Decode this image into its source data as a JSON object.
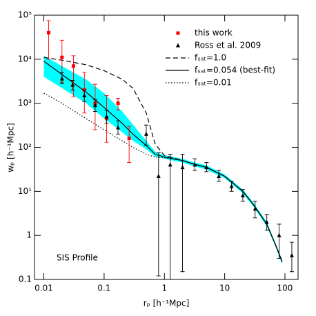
{
  "chart_data": {
    "type": "scatter",
    "xscale": "log",
    "yscale": "log",
    "grid": false,
    "legend": "upper right",
    "xlabel": "rₚ [h⁻¹Mpc]",
    "ylabel": "wₚ [h⁻¹Mpc]",
    "annotation": "SIS Profile",
    "xlim": [
      0.007,
      165
    ],
    "ylim": [
      0.1,
      100000
    ],
    "xticks": [
      0.01,
      0.1,
      1,
      10,
      100
    ],
    "yticks": [
      0.1,
      1,
      {
        "value": 10,
        "label": "10¹"
      },
      {
        "value": 100,
        "label": "10²"
      },
      {
        "value": 1000,
        "label": "10³"
      },
      {
        "value": 10000,
        "label": "10⁴"
      },
      {
        "value": 100000,
        "label": "10⁵"
      }
    ],
    "band": {
      "color": "#00ffff",
      "x": [
        0.01,
        0.02,
        0.05,
        0.1,
        0.2,
        0.3,
        0.5,
        0.7,
        1,
        2,
        3,
        5,
        10,
        20,
        30,
        50,
        70,
        90
      ],
      "lower": [
        4000,
        2200,
        1000,
        450,
        220,
        140,
        90,
        62,
        55,
        45,
        38,
        31,
        20,
        9,
        4.5,
        1.6,
        0.55,
        0.22
      ],
      "upper": [
        12000,
        7000,
        3500,
        1700,
        650,
        330,
        140,
        80,
        66,
        55,
        46,
        39,
        24,
        11,
        5.5,
        2,
        0.66,
        0.28
      ]
    },
    "series": [
      {
        "name": "this work",
        "color": "#ff0000",
        "marker": "square",
        "x": [
          0.012,
          0.02,
          0.031,
          0.047,
          0.071,
          0.11,
          0.17,
          0.26
        ],
        "values": [
          40000,
          11000,
          7000,
          2000,
          1000,
          450,
          1000,
          160
        ],
        "lower": [
          10000,
          3000,
          1400,
          600,
          250,
          130,
          700,
          45
        ],
        "upper": [
          75000,
          27000,
          12000,
          5000,
          2700,
          1500,
          1300,
          300
        ]
      },
      {
        "name": "Ross et al. 2009",
        "color": "#000000",
        "marker": "triangle",
        "x": [
          0.02,
          0.03,
          0.047,
          0.071,
          0.11,
          0.17,
          0.5,
          0.8,
          1.25,
          2,
          3.2,
          5,
          8,
          13,
          20,
          32,
          50,
          80,
          130
        ],
        "values": [
          3600,
          2600,
          1500,
          900,
          500,
          280,
          200,
          22,
          40,
          35,
          40,
          35,
          22,
          13,
          8,
          4,
          2,
          1,
          0.35
        ],
        "lower": [
          2800,
          2000,
          1100,
          650,
          350,
          200,
          110,
          0.12,
          0.1,
          0.15,
          30,
          28,
          17,
          10,
          6,
          2.5,
          1.3,
          0.3,
          0.15
        ],
        "upper": [
          5000,
          3300,
          2000,
          1200,
          700,
          400,
          320,
          75,
          70,
          70,
          55,
          45,
          30,
          17,
          11,
          6,
          3,
          1.8,
          0.7
        ]
      },
      {
        "name": "fₛₐₜ=1.0",
        "color": "#000000",
        "linestyle": "dashed",
        "x": [
          0.01,
          0.02,
          0.05,
          0.1,
          0.2,
          0.3,
          0.5,
          0.7,
          1,
          2,
          3,
          5,
          10,
          20,
          30,
          50,
          70,
          90
        ],
        "values": [
          11000,
          9500,
          7500,
          5500,
          3500,
          2200,
          600,
          120,
          65,
          50,
          42,
          35,
          22,
          10,
          5,
          1.8,
          0.6,
          0.25
        ]
      },
      {
        "name": "fₛₐₜ=0.054 (best-fit)",
        "color": "#000000",
        "linestyle": "solid",
        "x": [
          0.01,
          0.02,
          0.05,
          0.1,
          0.2,
          0.3,
          0.5,
          0.7,
          1,
          2,
          3,
          5,
          10,
          20,
          30,
          50,
          70,
          90
        ],
        "values": [
          9000,
          4500,
          1800,
          800,
          350,
          200,
          110,
          70,
          60,
          50,
          42,
          35,
          22,
          10,
          5,
          1.8,
          0.6,
          0.25
        ]
      },
      {
        "name": "fₛₐₜ=0.01",
        "color": "#000000",
        "linestyle": "dotted",
        "x": [
          0.01,
          0.02,
          0.05,
          0.1,
          0.2,
          0.3,
          0.5,
          0.7,
          1,
          2,
          3,
          5,
          10,
          20,
          30,
          50,
          70,
          90
        ],
        "values": [
          1700,
          1000,
          450,
          250,
          140,
          100,
          70,
          60,
          58,
          50,
          42,
          35,
          22,
          10,
          5,
          1.8,
          0.6,
          0.25
        ]
      }
    ]
  }
}
